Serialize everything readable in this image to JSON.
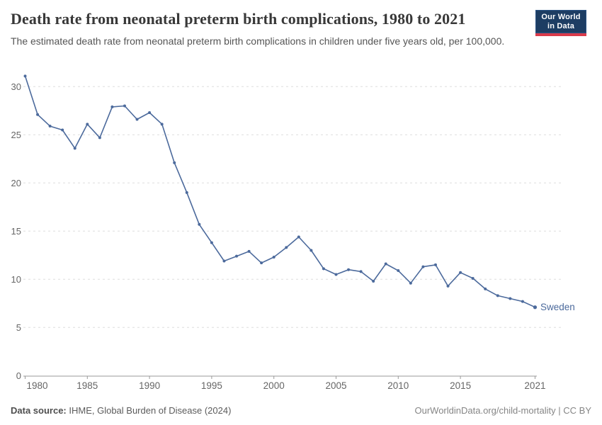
{
  "header": {
    "title": "Death rate from neonatal preterm birth complications, 1980 to 2021",
    "subtitle": "The estimated death rate from neonatal preterm birth complications in children under five years old, per 100,000.",
    "logo": {
      "line1": "Our World",
      "line2": "in Data",
      "bg_color": "#1d3d63",
      "stripe_color": "#d93a4a"
    }
  },
  "chart_data": {
    "type": "line",
    "title": "Death rate from neonatal preterm birth complications, 1980 to 2021",
    "xlabel": "",
    "ylabel": "",
    "xlim": [
      1980,
      2021
    ],
    "ylim": [
      0,
      32
    ],
    "grid": "horizontal-dashed",
    "legend_position": "end-of-line",
    "x_ticks": [
      1980,
      1985,
      1990,
      1995,
      2000,
      2005,
      2010,
      2015,
      2021
    ],
    "y_ticks": [
      0,
      5,
      10,
      15,
      20,
      25,
      30
    ],
    "years": [
      1980,
      1981,
      1982,
      1983,
      1984,
      1985,
      1986,
      1987,
      1988,
      1989,
      1990,
      1991,
      1992,
      1993,
      1994,
      1995,
      1996,
      1997,
      1998,
      1999,
      2000,
      2001,
      2002,
      2003,
      2004,
      2005,
      2006,
      2007,
      2008,
      2009,
      2010,
      2011,
      2012,
      2013,
      2014,
      2015,
      2016,
      2017,
      2018,
      2019,
      2020,
      2021
    ],
    "series": [
      {
        "name": "Sweden",
        "color": "#4C6A9C",
        "values": [
          31.1,
          27.1,
          25.9,
          25.5,
          23.6,
          26.1,
          24.7,
          27.9,
          28.0,
          26.6,
          27.3,
          26.1,
          22.1,
          19.0,
          15.7,
          13.8,
          11.9,
          12.4,
          12.9,
          11.7,
          12.3,
          13.3,
          14.4,
          13.0,
          11.1,
          10.5,
          11.0,
          10.8,
          9.8,
          11.6,
          10.9,
          9.6,
          11.3,
          11.5,
          9.3,
          10.7,
          10.1,
          9.0,
          8.3,
          8.0,
          7.7,
          7.1
        ]
      }
    ],
    "colors": {
      "gridline": "#dddddd",
      "axis": "#999999",
      "tick_label": "#666666"
    }
  },
  "footer": {
    "source_label": "Data source:",
    "source_text": " IHME, Global Burden of Disease (2024)",
    "link_text": "OurWorldinData.org/child-mortality | CC BY"
  }
}
